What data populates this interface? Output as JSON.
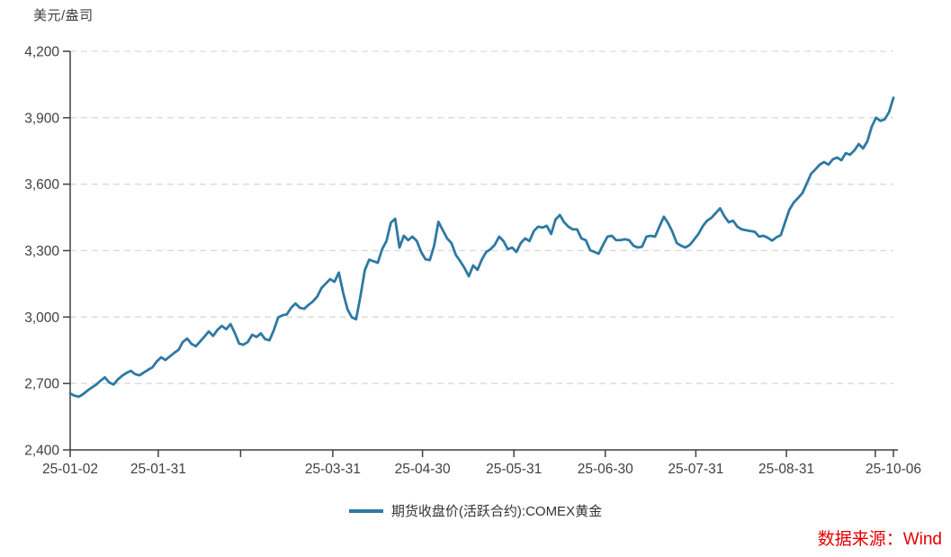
{
  "chart": {
    "unit": "美元/盎司",
    "legend_label": "期货收盘价(活跃合约):COMEX黄金",
    "source": "数据来源：Wind",
    "source_color": "#E60000"
  },
  "chart_data": {
    "type": "line",
    "title": "",
    "xlabel": "",
    "ylabel": "美元/盎司",
    "ylim": [
      2400,
      4200
    ],
    "yticks": [
      2400,
      2700,
      3000,
      3300,
      3600,
      3900,
      4200
    ],
    "grid": "horizontal-dashed",
    "legend_position": "bottom-center",
    "line_color": "#2E79A3",
    "axis_color": "#404040",
    "grid_color": "#D9D9D9",
    "x_ticks": [
      {
        "label": "25-01-02",
        "pos": 0.0
      },
      {
        "label": "25-01-31",
        "pos": 0.107
      },
      {
        "label": "",
        "pos": 0.207
      },
      {
        "label": "25-03-31",
        "pos": 0.319
      },
      {
        "label": "25-04-30",
        "pos": 0.428
      },
      {
        "label": "25-05-31",
        "pos": 0.539
      },
      {
        "label": "25-06-30",
        "pos": 0.65
      },
      {
        "label": "25-07-31",
        "pos": 0.76
      },
      {
        "label": "25-08-31",
        "pos": 0.87
      },
      {
        "label": "",
        "pos": 0.978
      },
      {
        "label": "25-10-06",
        "pos": 1.0
      }
    ],
    "series": [
      {
        "name": "期货收盘价(活跃合约):COMEX黄金",
        "values": [
          2655,
          2645,
          2640,
          2652,
          2668,
          2682,
          2695,
          2712,
          2728,
          2705,
          2695,
          2718,
          2735,
          2748,
          2757,
          2742,
          2737,
          2750,
          2762,
          2773,
          2800,
          2818,
          2806,
          2822,
          2838,
          2852,
          2887,
          2903,
          2879,
          2868,
          2890,
          2912,
          2935,
          2915,
          2942,
          2960,
          2945,
          2968,
          2928,
          2880,
          2875,
          2887,
          2920,
          2910,
          2926,
          2900,
          2895,
          2940,
          2998,
          3008,
          3012,
          3042,
          3061,
          3042,
          3037,
          3055,
          3070,
          3092,
          3131,
          3151,
          3171,
          3159,
          3201,
          3110,
          3035,
          2999,
          2990,
          3096,
          3212,
          3259,
          3252,
          3245,
          3306,
          3344,
          3426,
          3444,
          3314,
          3367,
          3347,
          3363,
          3343,
          3294,
          3261,
          3257,
          3322,
          3430,
          3392,
          3355,
          3334,
          3281,
          3253,
          3222,
          3184,
          3233,
          3213,
          3259,
          3293,
          3306,
          3326,
          3363,
          3343,
          3306,
          3314,
          3294,
          3334,
          3355,
          3343,
          3388,
          3408,
          3404,
          3412,
          3375,
          3440,
          3461,
          3428,
          3408,
          3396,
          3396,
          3355,
          3347,
          3302,
          3294,
          3286,
          3326,
          3363,
          3367,
          3347,
          3347,
          3351,
          3347,
          3322,
          3314,
          3318,
          3363,
          3367,
          3363,
          3408,
          3453,
          3424,
          3384,
          3334,
          3322,
          3314,
          3326,
          3350,
          3375,
          3410,
          3435,
          3448,
          3470,
          3491,
          3455,
          3428,
          3435,
          3408,
          3396,
          3392,
          3388,
          3385,
          3363,
          3367,
          3358,
          3345,
          3360,
          3370,
          3428,
          3485,
          3517,
          3538,
          3560,
          3603,
          3647,
          3667,
          3688,
          3700,
          3688,
          3712,
          3720,
          3708,
          3740,
          3733,
          3753,
          3781,
          3761,
          3794,
          3860,
          3900,
          3886,
          3893,
          3926,
          3990
        ]
      }
    ]
  }
}
